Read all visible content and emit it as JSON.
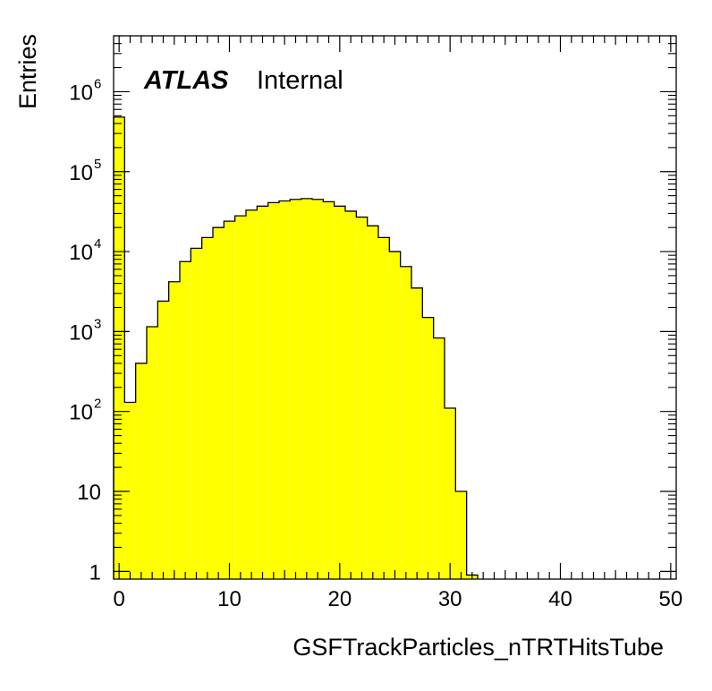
{
  "chart_data": {
    "type": "bar",
    "style": "histogram-step-filled",
    "xlabel": "GSFTrackParticles_nTRTHitsTube",
    "ylabel": "Entries",
    "label_bold": "ATLAS",
    "label_status": "Internal",
    "xlim": [
      -0.5,
      50.5
    ],
    "ylim": [
      0.8,
      5000000
    ],
    "yscale": "log",
    "x_tick_labels": [
      "0",
      "10",
      "20",
      "30",
      "40",
      "50"
    ],
    "y_tick_labels": [
      "1",
      "10",
      "10",
      "10",
      "10",
      "10",
      "10"
    ],
    "y_tick_exponents": [
      "",
      "",
      "2",
      "3",
      "4",
      "5",
      "6"
    ],
    "bin_width": 1,
    "bin_centers": [
      0,
      1,
      2,
      3,
      4,
      5,
      6,
      7,
      8,
      9,
      10,
      11,
      12,
      13,
      14,
      15,
      16,
      17,
      18,
      19,
      20,
      21,
      22,
      23,
      24,
      25,
      26,
      27,
      28,
      29,
      30,
      31,
      32
    ],
    "values": [
      480000,
      130,
      400,
      1150,
      2400,
      4200,
      7500,
      11000,
      15000,
      20000,
      24000,
      28000,
      33000,
      37000,
      41000,
      43000,
      45000,
      46000,
      45000,
      42000,
      37000,
      32000,
      27000,
      21000,
      15000,
      10000,
      6500,
      3500,
      1500,
      830,
      110,
      10,
      0.9
    ],
    "fill_color": "#ffff00",
    "line_color": "#000000"
  }
}
